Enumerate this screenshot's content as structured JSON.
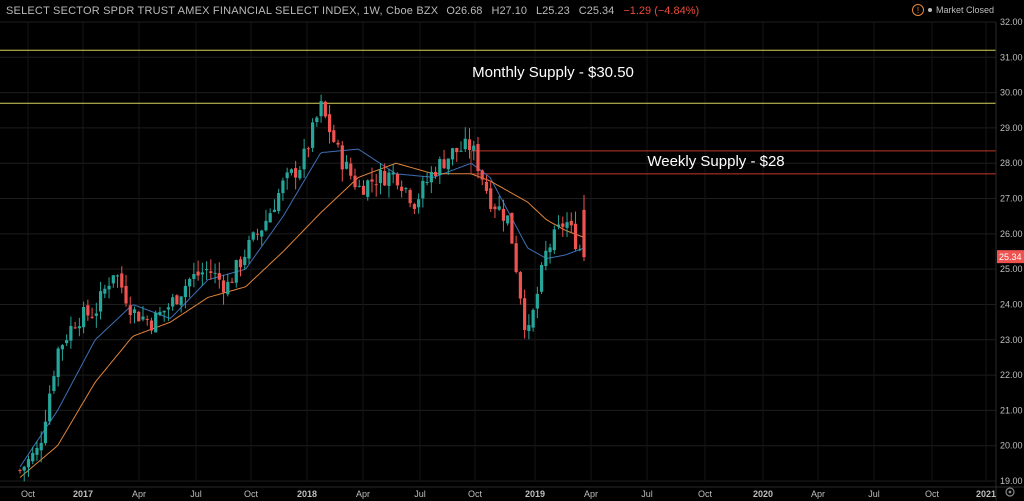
{
  "header": {
    "title": "SELECT SECTOR SPDR TRUST AMEX FINANCIAL SELECT INDEX, 1W, Cboe BZX",
    "open": "O26.68",
    "high": "H27.10",
    "low": "L25.23",
    "close": "C25.34",
    "change": "−1.29 (−4.84%)",
    "market_status": "Market Closed"
  },
  "colors": {
    "up": "#26a69a",
    "down": "#ef5350",
    "ma_fast": "#3d6fb6",
    "ma_slow": "#e0843a",
    "monthly_line": "#d6d25a",
    "weekly_line": "#c0392b"
  },
  "chart_data": {
    "type": "candlestick",
    "timeframe": "1W",
    "ylim": [
      19.0,
      32.0
    ],
    "y_ticks": [
      19.0,
      20.0,
      21.0,
      22.0,
      23.0,
      24.0,
      25.0,
      26.0,
      27.0,
      28.0,
      29.0,
      30.0,
      31.0,
      32.0
    ],
    "x_tick_labels": [
      "Oct",
      "2017",
      "Apr",
      "Jul",
      "Oct",
      "2018",
      "Apr",
      "Jul",
      "Oct",
      "2019",
      "Apr",
      "Jul",
      "Oct",
      "2020",
      "Apr",
      "Jul",
      "Oct",
      "2021"
    ],
    "last_price_label": "25.34",
    "price_path": [
      [
        "2016-09",
        19.3
      ],
      [
        "2016-10",
        19.9
      ],
      [
        "2016-11",
        22.7
      ],
      [
        "2016-12",
        23.6
      ],
      [
        "2017-01",
        23.8
      ],
      [
        "2017-02",
        25.0
      ],
      [
        "2017-03",
        23.8
      ],
      [
        "2017-04",
        23.5
      ],
      [
        "2017-05",
        24.0
      ],
      [
        "2017-06",
        24.7
      ],
      [
        "2017-07",
        25.0
      ],
      [
        "2017-08",
        24.5
      ],
      [
        "2017-09",
        25.5
      ],
      [
        "2017-10",
        26.3
      ],
      [
        "2017-11",
        27.4
      ],
      [
        "2017-12",
        28.0
      ],
      [
        "2018-01",
        29.6
      ],
      [
        "2018-02",
        28.2
      ],
      [
        "2018-03",
        27.3
      ],
      [
        "2018-04",
        27.6
      ],
      [
        "2018-05",
        27.7
      ],
      [
        "2018-06",
        26.9
      ],
      [
        "2018-07",
        27.8
      ],
      [
        "2018-08",
        28.3
      ],
      [
        "2018-09",
        28.5
      ],
      [
        "2018-10",
        27.0
      ],
      [
        "2018-11",
        26.4
      ],
      [
        "2018-12",
        23.0
      ],
      [
        "2019-01",
        25.5
      ],
      [
        "2019-02",
        26.4
      ],
      [
        "2019-03",
        25.34
      ]
    ],
    "ma_fast_path": [
      [
        "2016-09",
        19.4
      ],
      [
        "2016-11",
        21.0
      ],
      [
        "2017-01",
        23.0
      ],
      [
        "2017-03",
        24.0
      ],
      [
        "2017-05",
        23.6
      ],
      [
        "2017-07",
        24.7
      ],
      [
        "2017-09",
        25.0
      ],
      [
        "2017-11",
        26.5
      ],
      [
        "2018-01",
        28.3
      ],
      [
        "2018-03",
        28.4
      ],
      [
        "2018-05",
        27.7
      ],
      [
        "2018-07",
        27.6
      ],
      [
        "2018-09",
        28.0
      ],
      [
        "2018-10",
        27.6
      ],
      [
        "2018-12",
        25.6
      ],
      [
        "2019-01",
        25.3
      ],
      [
        "2019-02",
        25.4
      ],
      [
        "2019-03",
        25.6
      ]
    ],
    "ma_slow_path": [
      [
        "2016-09",
        19.1
      ],
      [
        "2016-11",
        20.0
      ],
      [
        "2017-01",
        21.8
      ],
      [
        "2017-03",
        23.1
      ],
      [
        "2017-05",
        23.5
      ],
      [
        "2017-07",
        24.2
      ],
      [
        "2017-09",
        24.5
      ],
      [
        "2017-11",
        25.5
      ],
      [
        "2018-01",
        26.6
      ],
      [
        "2018-03",
        27.6
      ],
      [
        "2018-05",
        28.0
      ],
      [
        "2018-07",
        27.7
      ],
      [
        "2018-09",
        27.7
      ],
      [
        "2018-10",
        27.5
      ],
      [
        "2018-12",
        26.9
      ],
      [
        "2019-01",
        26.4
      ],
      [
        "2019-02",
        26.1
      ],
      [
        "2019-03",
        25.9
      ]
    ],
    "horizontal_levels": [
      {
        "name": "top",
        "value": 31.2
      },
      {
        "name": "monthly",
        "value": 29.7
      },
      {
        "name": "weekly_upper",
        "value": 28.35
      },
      {
        "name": "weekly_lower",
        "value": 27.7
      }
    ],
    "annotations": [
      {
        "text": "Monthly Supply - $30.50"
      },
      {
        "text": "Weekly Supply - $28"
      }
    ]
  }
}
